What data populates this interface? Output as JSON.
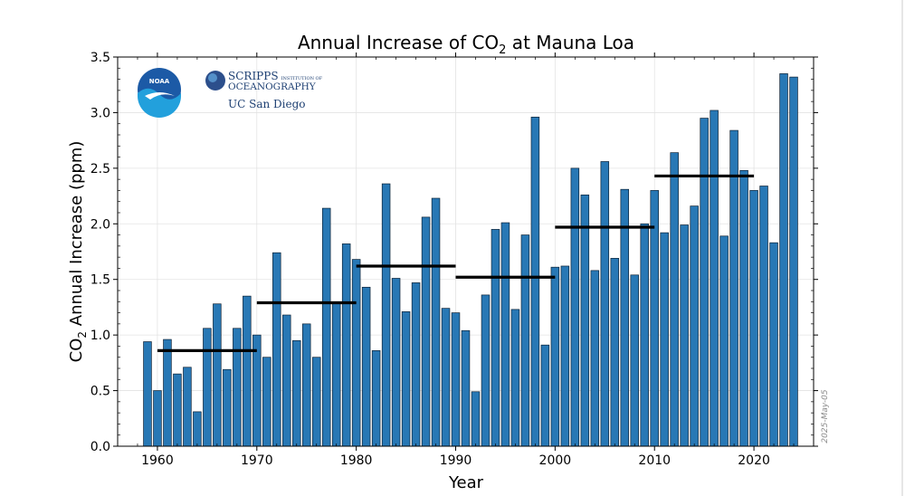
{
  "chart_data": {
    "type": "bar",
    "title_main": "Annual Increase of CO",
    "title_sub": "2",
    "title_tail": " at Mauna Loa",
    "xlabel": "Year",
    "ylabel_main": "CO",
    "ylabel_sub": "2",
    "ylabel_tail": " Annual Increase (ppm)",
    "xlim": [
      1956,
      2026
    ],
    "ylim": [
      0,
      3.5
    ],
    "x_ticks": [
      1960,
      1970,
      1980,
      1990,
      2000,
      2010,
      2020
    ],
    "x_tick_labels": [
      "1960",
      "1970",
      "1980",
      "1990",
      "2000",
      "2010",
      "2020"
    ],
    "y_ticks": [
      0,
      0.5,
      1.0,
      1.5,
      2.0,
      2.5,
      3.0,
      3.5
    ],
    "y_tick_labels": [
      "0.0",
      "0.5",
      "1.0",
      "1.5",
      "2.0",
      "2.5",
      "3.0",
      "3.5"
    ],
    "grid": true,
    "bar_color": "#2878b5",
    "years": [
      1959,
      1960,
      1961,
      1962,
      1963,
      1964,
      1965,
      1966,
      1967,
      1968,
      1969,
      1970,
      1971,
      1972,
      1973,
      1974,
      1975,
      1976,
      1977,
      1978,
      1979,
      1980,
      1981,
      1982,
      1983,
      1984,
      1985,
      1986,
      1987,
      1988,
      1989,
      1990,
      1991,
      1992,
      1993,
      1994,
      1995,
      1996,
      1997,
      1998,
      1999,
      2000,
      2001,
      2002,
      2003,
      2004,
      2005,
      2006,
      2007,
      2008,
      2009,
      2010,
      2011,
      2012,
      2013,
      2014,
      2015,
      2016,
      2017,
      2018,
      2019,
      2020,
      2021,
      2022,
      2023,
      2024
    ],
    "values": [
      0.94,
      0.5,
      0.96,
      0.65,
      0.71,
      0.31,
      1.06,
      1.28,
      0.69,
      1.06,
      1.35,
      1.0,
      0.8,
      1.74,
      1.18,
      0.95,
      1.1,
      0.8,
      2.14,
      1.3,
      1.82,
      1.68,
      1.43,
      0.86,
      2.36,
      1.51,
      1.21,
      1.47,
      2.06,
      2.23,
      1.24,
      1.2,
      1.04,
      0.49,
      1.36,
      1.95,
      2.01,
      1.23,
      1.9,
      2.96,
      0.91,
      1.61,
      1.62,
      2.5,
      2.26,
      1.58,
      2.56,
      1.69,
      2.31,
      1.54,
      2.0,
      2.3,
      1.92,
      2.64,
      1.99,
      2.16,
      2.95,
      3.02,
      1.89,
      2.84,
      2.48,
      2.3,
      2.34,
      1.83,
      3.35,
      3.32
    ],
    "decade_averages": [
      {
        "start": 1960,
        "end": 1970,
        "value": 0.86
      },
      {
        "start": 1970,
        "end": 1980,
        "value": 1.29
      },
      {
        "start": 1980,
        "end": 1990,
        "value": 1.62
      },
      {
        "start": 1990,
        "end": 2000,
        "value": 1.52
      },
      {
        "start": 2000,
        "end": 2010,
        "value": 1.97
      },
      {
        "start": 2010,
        "end": 2020,
        "value": 2.43
      }
    ],
    "decade_line_color": "#000000"
  },
  "logos": {
    "noaa_text": "NOAA",
    "scripps_line1": "SCRIPPS",
    "scripps_line1_small": "INSTITUTION OF",
    "scripps_line2": "OCEANOGRAPHY",
    "ucsd": "UC San Diego",
    "noaa_color": "#1c5aa6",
    "scripps_color": "#1d3f72"
  },
  "date_stamp": "2025-May-05"
}
